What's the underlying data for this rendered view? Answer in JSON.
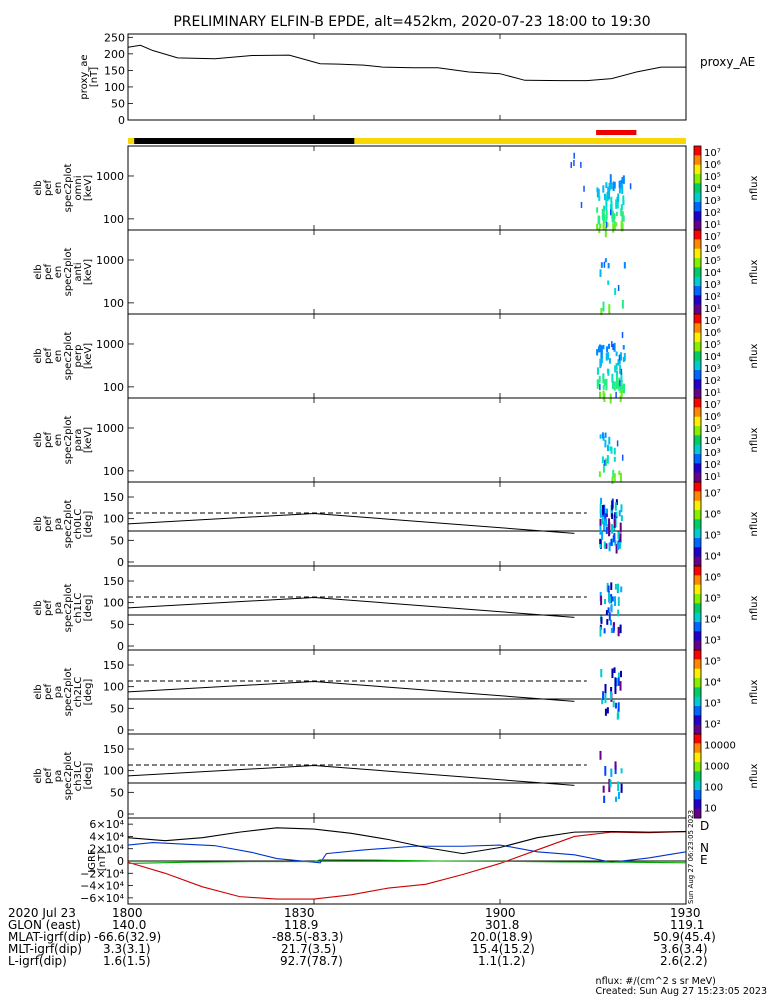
{
  "title": "PRELIMINARY ELFIN-B EPDE, alt=452km, 2020-07-23 18:00 to 19:30",
  "proxy_ae": {
    "ylabel_lines": [
      "proxy_ae",
      "[nT]"
    ],
    "legend": "proxy_AE",
    "yticks": [
      "250",
      "200",
      "150",
      "100",
      "50",
      "0"
    ],
    "ytick_values": [
      250,
      200,
      150,
      100,
      50,
      0
    ],
    "ylim": [
      0,
      260
    ],
    "x_minutes": [
      0,
      2,
      4,
      8,
      14,
      20,
      26,
      31,
      34,
      38,
      41,
      46,
      50,
      55,
      60,
      64,
      70,
      74,
      78,
      82,
      86,
      90
    ],
    "values": [
      220,
      226,
      210,
      188,
      185,
      195,
      196,
      170,
      169,
      166,
      160,
      158,
      158,
      145,
      140,
      120,
      119,
      119,
      125,
      145,
      160,
      160
    ]
  },
  "status_bar": {
    "colors": {
      "sunlit": "#f8d800",
      "shadow": "#000000",
      "science": "#ee0000"
    },
    "shadow_minutes": [
      1.0,
      36.5
    ],
    "science_minutes": [
      75.5,
      82.0
    ]
  },
  "spectrogram_panels": [
    {
      "ylabel_lines": [
        "elb",
        "pef",
        "en",
        "spec2plot",
        "omni",
        "[keV]"
      ],
      "yticks": [
        "1000",
        "100"
      ],
      "ytick_values": [
        1000,
        100
      ],
      "colorbar_label": "nflux",
      "colorbar_ticks": [
        "10⁷",
        "10⁶",
        "10⁵",
        "10⁴",
        "10³",
        "10²",
        "10¹"
      ]
    },
    {
      "ylabel_lines": [
        "elb",
        "pef",
        "en",
        "spec2plot",
        "anti",
        "[keV]"
      ],
      "yticks": [
        "1000",
        "100"
      ],
      "ytick_values": [
        1000,
        100
      ],
      "colorbar_label": "nflux",
      "colorbar_ticks": [
        "10⁷",
        "10⁶",
        "10⁵",
        "10⁴",
        "10³",
        "10²",
        "10¹"
      ]
    },
    {
      "ylabel_lines": [
        "elb",
        "pef",
        "en",
        "spec2plot",
        "perp",
        "[keV]"
      ],
      "yticks": [
        "1000",
        "100"
      ],
      "ytick_values": [
        1000,
        100
      ],
      "colorbar_label": "nflux",
      "colorbar_ticks": [
        "10⁷",
        "10⁶",
        "10⁵",
        "10⁴",
        "10³",
        "10²",
        "10¹"
      ]
    },
    {
      "ylabel_lines": [
        "elb",
        "pef",
        "en",
        "spec2plot",
        "para",
        "[keV]"
      ],
      "yticks": [
        "1000",
        "100"
      ],
      "ytick_values": [
        1000,
        100
      ],
      "colorbar_label": "nflux",
      "colorbar_ticks": [
        "10⁷",
        "10⁶",
        "10⁵",
        "10⁴",
        "10³",
        "10²",
        "10¹"
      ]
    }
  ],
  "pitch_panels": [
    {
      "ylabel_lines": [
        "elb",
        "pef",
        "pa",
        "spec2plot",
        "ch0LC",
        "[deg]"
      ],
      "yticks": [
        "150",
        "100",
        "50",
        "0"
      ],
      "ytick_values": [
        150,
        100,
        50,
        0
      ],
      "colorbar_label": "nflux",
      "colorbar_ticks": [
        "10⁷",
        "10⁶",
        "10⁵",
        "10⁴"
      ]
    },
    {
      "ylabel_lines": [
        "elb",
        "pef",
        "pa",
        "spec2plot",
        "ch1LC",
        "[deg]"
      ],
      "yticks": [
        "150",
        "100",
        "50",
        "0"
      ],
      "ytick_values": [
        150,
        100,
        50,
        0
      ],
      "colorbar_label": "nflux",
      "colorbar_ticks": [
        "10⁶",
        "10⁵",
        "10⁴",
        "10³"
      ]
    },
    {
      "ylabel_lines": [
        "elb",
        "pef",
        "pa",
        "spec2plot",
        "ch2LC",
        "[deg]"
      ],
      "yticks": [
        "150",
        "100",
        "50",
        "0"
      ],
      "ytick_values": [
        150,
        100,
        50,
        0
      ],
      "colorbar_label": "nflux",
      "colorbar_ticks": [
        "10⁵",
        "10⁴",
        "10³",
        "10²"
      ]
    },
    {
      "ylabel_lines": [
        "elb",
        "pef",
        "pa",
        "spec2plot",
        "ch3LC",
        "[deg]"
      ],
      "yticks": [
        "150",
        "100",
        "50",
        "0"
      ],
      "ytick_values": [
        150,
        100,
        50,
        0
      ],
      "colorbar_label": "nflux",
      "colorbar_ticks": [
        "10000",
        "1000",
        "100",
        "10"
      ]
    }
  ],
  "loss_cone": {
    "x_minutes": [
      0,
      30,
      72
    ],
    "solid_deg": [
      88,
      112,
      66
    ],
    "dashed_deg": 113,
    "dashed_end_minute": 74
  },
  "grf": {
    "ylabel_lines": [
      "IGRF",
      "[nT]"
    ],
    "yticks": [
      "6×10⁴",
      "4×10⁴",
      "2×10⁴",
      "0",
      "−2×10⁴",
      "−4×10⁴",
      "−6×10⁴"
    ],
    "ytick_values": [
      60000,
      40000,
      20000,
      0,
      -20000,
      -40000,
      -60000
    ],
    "series": [
      {
        "name": "D",
        "color": "#cc0000"
      },
      {
        "name": "N",
        "color": "#0033cc"
      },
      {
        "name": "E",
        "color": "#00aa00"
      }
    ],
    "side_stamp": "Sun Aug 27 06:23:05 2023"
  },
  "chart_data": {
    "type": "line",
    "title": "PRELIMINARY ELFIN-B EPDE, alt=452km, 2020-07-23 18:00 to 19:30",
    "x_tick_labels": [
      "1800",
      "1830",
      "1900",
      "1930"
    ],
    "x_tick_minutes": [
      0,
      30,
      60,
      90
    ],
    "xlim_minutes": [
      0,
      90
    ],
    "series": [
      {
        "name": "proxy_AE",
        "x_minutes": [
          0,
          2,
          4,
          8,
          14,
          20,
          26,
          31,
          34,
          38,
          41,
          46,
          50,
          55,
          60,
          64,
          70,
          74,
          78,
          82,
          86,
          90
        ],
        "values": [
          220,
          226,
          210,
          188,
          185,
          195,
          196,
          170,
          169,
          166,
          160,
          158,
          158,
          145,
          140,
          120,
          119,
          119,
          125,
          145,
          160,
          160
        ]
      },
      {
        "name": "D",
        "x_minutes": [
          0,
          6,
          12,
          18,
          24,
          30,
          36,
          42,
          48,
          54,
          60,
          66,
          72,
          78,
          84,
          90
        ],
        "values": [
          -2000,
          -20000,
          -42000,
          -58000,
          -62000,
          -62000,
          -55000,
          -44000,
          -38000,
          -22000,
          -4000,
          18000,
          40000,
          47000,
          46000,
          48000
        ]
      },
      {
        "name": "N",
        "x_minutes": [
          0,
          4,
          8,
          14,
          20,
          24,
          31,
          32,
          38,
          46,
          54,
          60,
          66,
          72,
          78,
          84,
          90
        ],
        "values": [
          26000,
          30000,
          28000,
          25000,
          14000,
          4000,
          -3000,
          12000,
          18000,
          24000,
          24000,
          26000,
          15000,
          10000,
          -2000,
          5000,
          15000
        ]
      },
      {
        "name": "E",
        "x_minutes": [
          0,
          10,
          20,
          30,
          31,
          40,
          50,
          60,
          70,
          80,
          90
        ],
        "values": [
          -4000,
          -2000,
          -1000,
          -1000,
          2000,
          1500,
          0,
          -500,
          -1500,
          -2000,
          -3000
        ]
      },
      {
        "name": "IGRF |B|",
        "x_minutes": [
          0,
          6,
          12,
          18,
          24,
          30,
          36,
          42,
          48,
          54,
          60,
          66,
          72,
          78,
          84,
          90
        ],
        "values": [
          38000,
          33000,
          38000,
          47000,
          54000,
          52000,
          45000,
          35000,
          22000,
          12000,
          22000,
          38000,
          47000,
          48000,
          47000,
          48000
        ]
      }
    ],
    "ylim": [
      -70000,
      70000
    ],
    "ylabel": "IGRF [nT]"
  },
  "footer": {
    "rows": [
      {
        "label": "2020 Jul 23",
        "values": [
          "1800",
          "1830",
          "1900",
          "1930"
        ]
      },
      {
        "label": "GLON (east)",
        "values": [
          "140.0",
          "118.9",
          "301.8",
          "119.1"
        ]
      },
      {
        "label": "MLAT-igrf(dip)",
        "values": [
          "-66.6(32.9)",
          "-88.5(-83.3)",
          "20.0(18.9)",
          "50.9(45.4)"
        ]
      },
      {
        "label": "MLT-igrf(dip)",
        "values": [
          "3.3(3.1)",
          "21.7(3.5)",
          "15.4(15.2)",
          "3.6(3.4)"
        ]
      },
      {
        "label": "L-igrf(dip)",
        "values": [
          "1.6(1.5)",
          "92.7(78.7)",
          "1.1(1.2)",
          "2.6(2.2)"
        ]
      }
    ],
    "unit_note": "nflux: #/(cm^2 s sr MeV)",
    "created": "Created: Sun Aug 27 15:23:05 2023"
  }
}
